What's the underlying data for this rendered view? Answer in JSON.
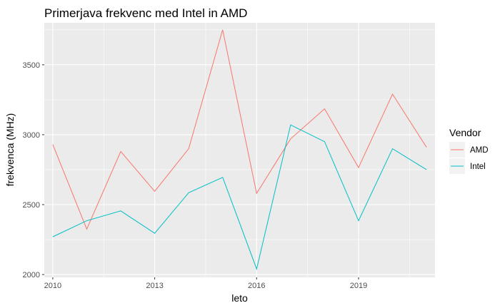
{
  "chart_data": {
    "type": "line",
    "title": "Primerjava frekvenc med Intel in AMD",
    "xlabel": "leto",
    "ylabel": "frekvenca (MHz)",
    "x": [
      2010,
      2011,
      2012,
      2013,
      2014,
      2015,
      2016,
      2017,
      2018,
      2019,
      2020,
      2021
    ],
    "x_ticks": [
      2010,
      2013,
      2016,
      2019
    ],
    "y_ticks": [
      2000,
      2500,
      3000,
      3500
    ],
    "xlim": [
      2009.75,
      2021.25
    ],
    "ylim": [
      1980,
      3800
    ],
    "grid": true,
    "legend_title": "Vendor",
    "legend_position": "right",
    "series": [
      {
        "name": "AMD",
        "color": "#F8766D",
        "values": [
          2930,
          2325,
          2880,
          2595,
          2900,
          3750,
          2580,
          2970,
          3185,
          2765,
          3290,
          2910
        ]
      },
      {
        "name": "Intel",
        "color": "#00BFC4",
        "values": [
          2270,
          2385,
          2455,
          2295,
          2585,
          2695,
          2040,
          3070,
          2950,
          2385,
          2900,
          2750
        ]
      }
    ]
  }
}
